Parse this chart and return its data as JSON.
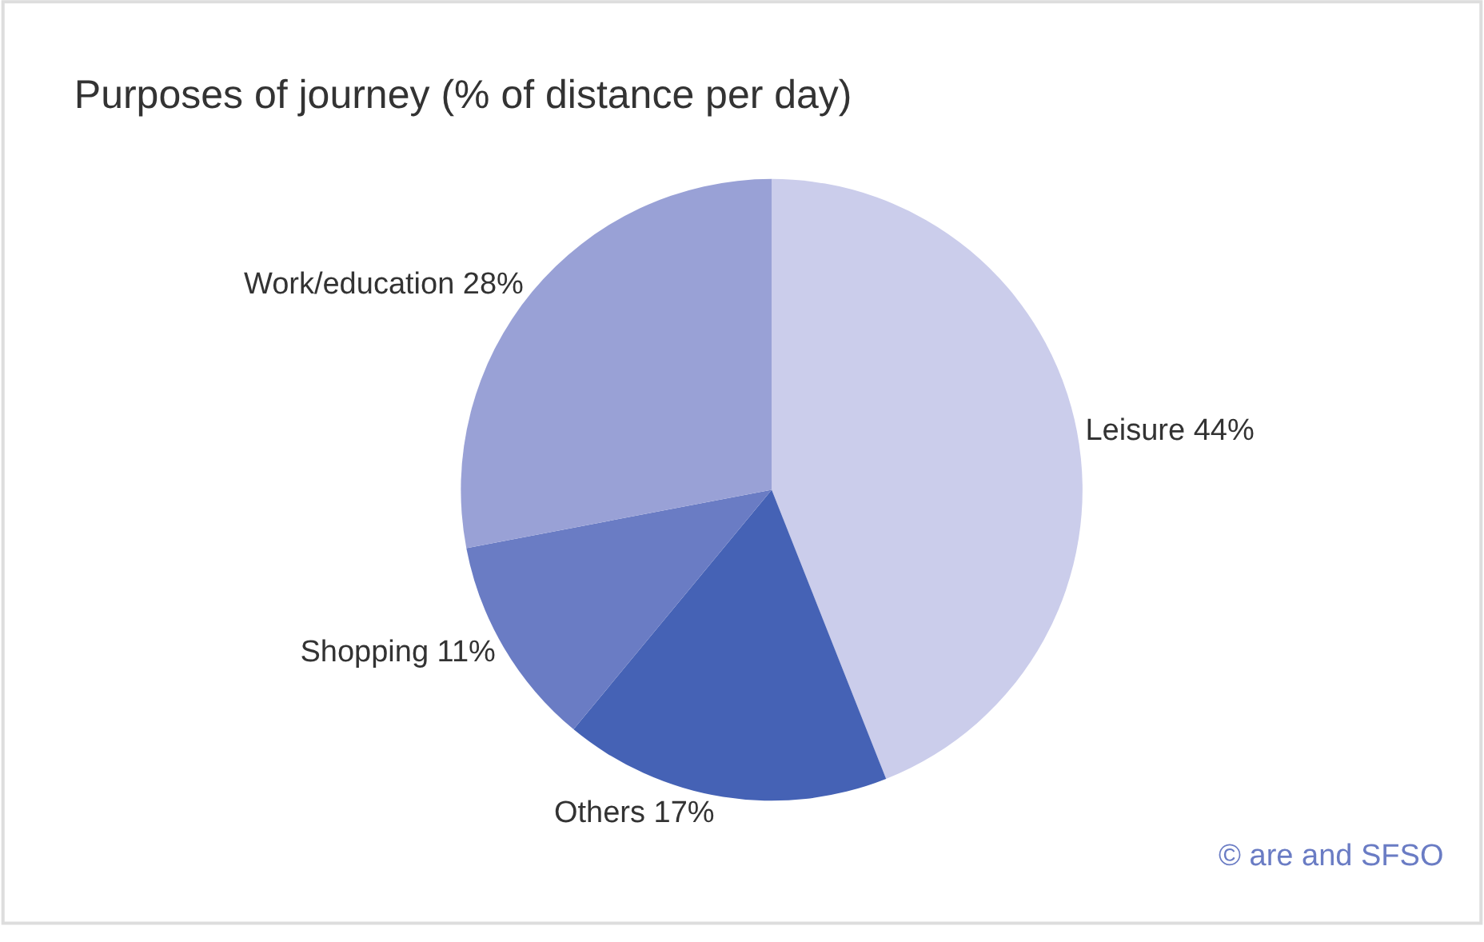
{
  "chart_data": {
    "type": "pie",
    "title": "Purposes of journey (% of distance per day)",
    "categories": [
      "Leisure",
      "Others",
      "Shopping",
      "Work/education"
    ],
    "values": [
      44,
      17,
      11,
      28
    ],
    "colors": [
      "#cbcdeb",
      "#4562b5",
      "#6a7cc4",
      "#99a1d6"
    ],
    "value_labels": [
      "44%",
      "17%",
      "11%",
      "28%"
    ],
    "legend": false,
    "annotations": [
      "© are and SFSO"
    ]
  }
}
